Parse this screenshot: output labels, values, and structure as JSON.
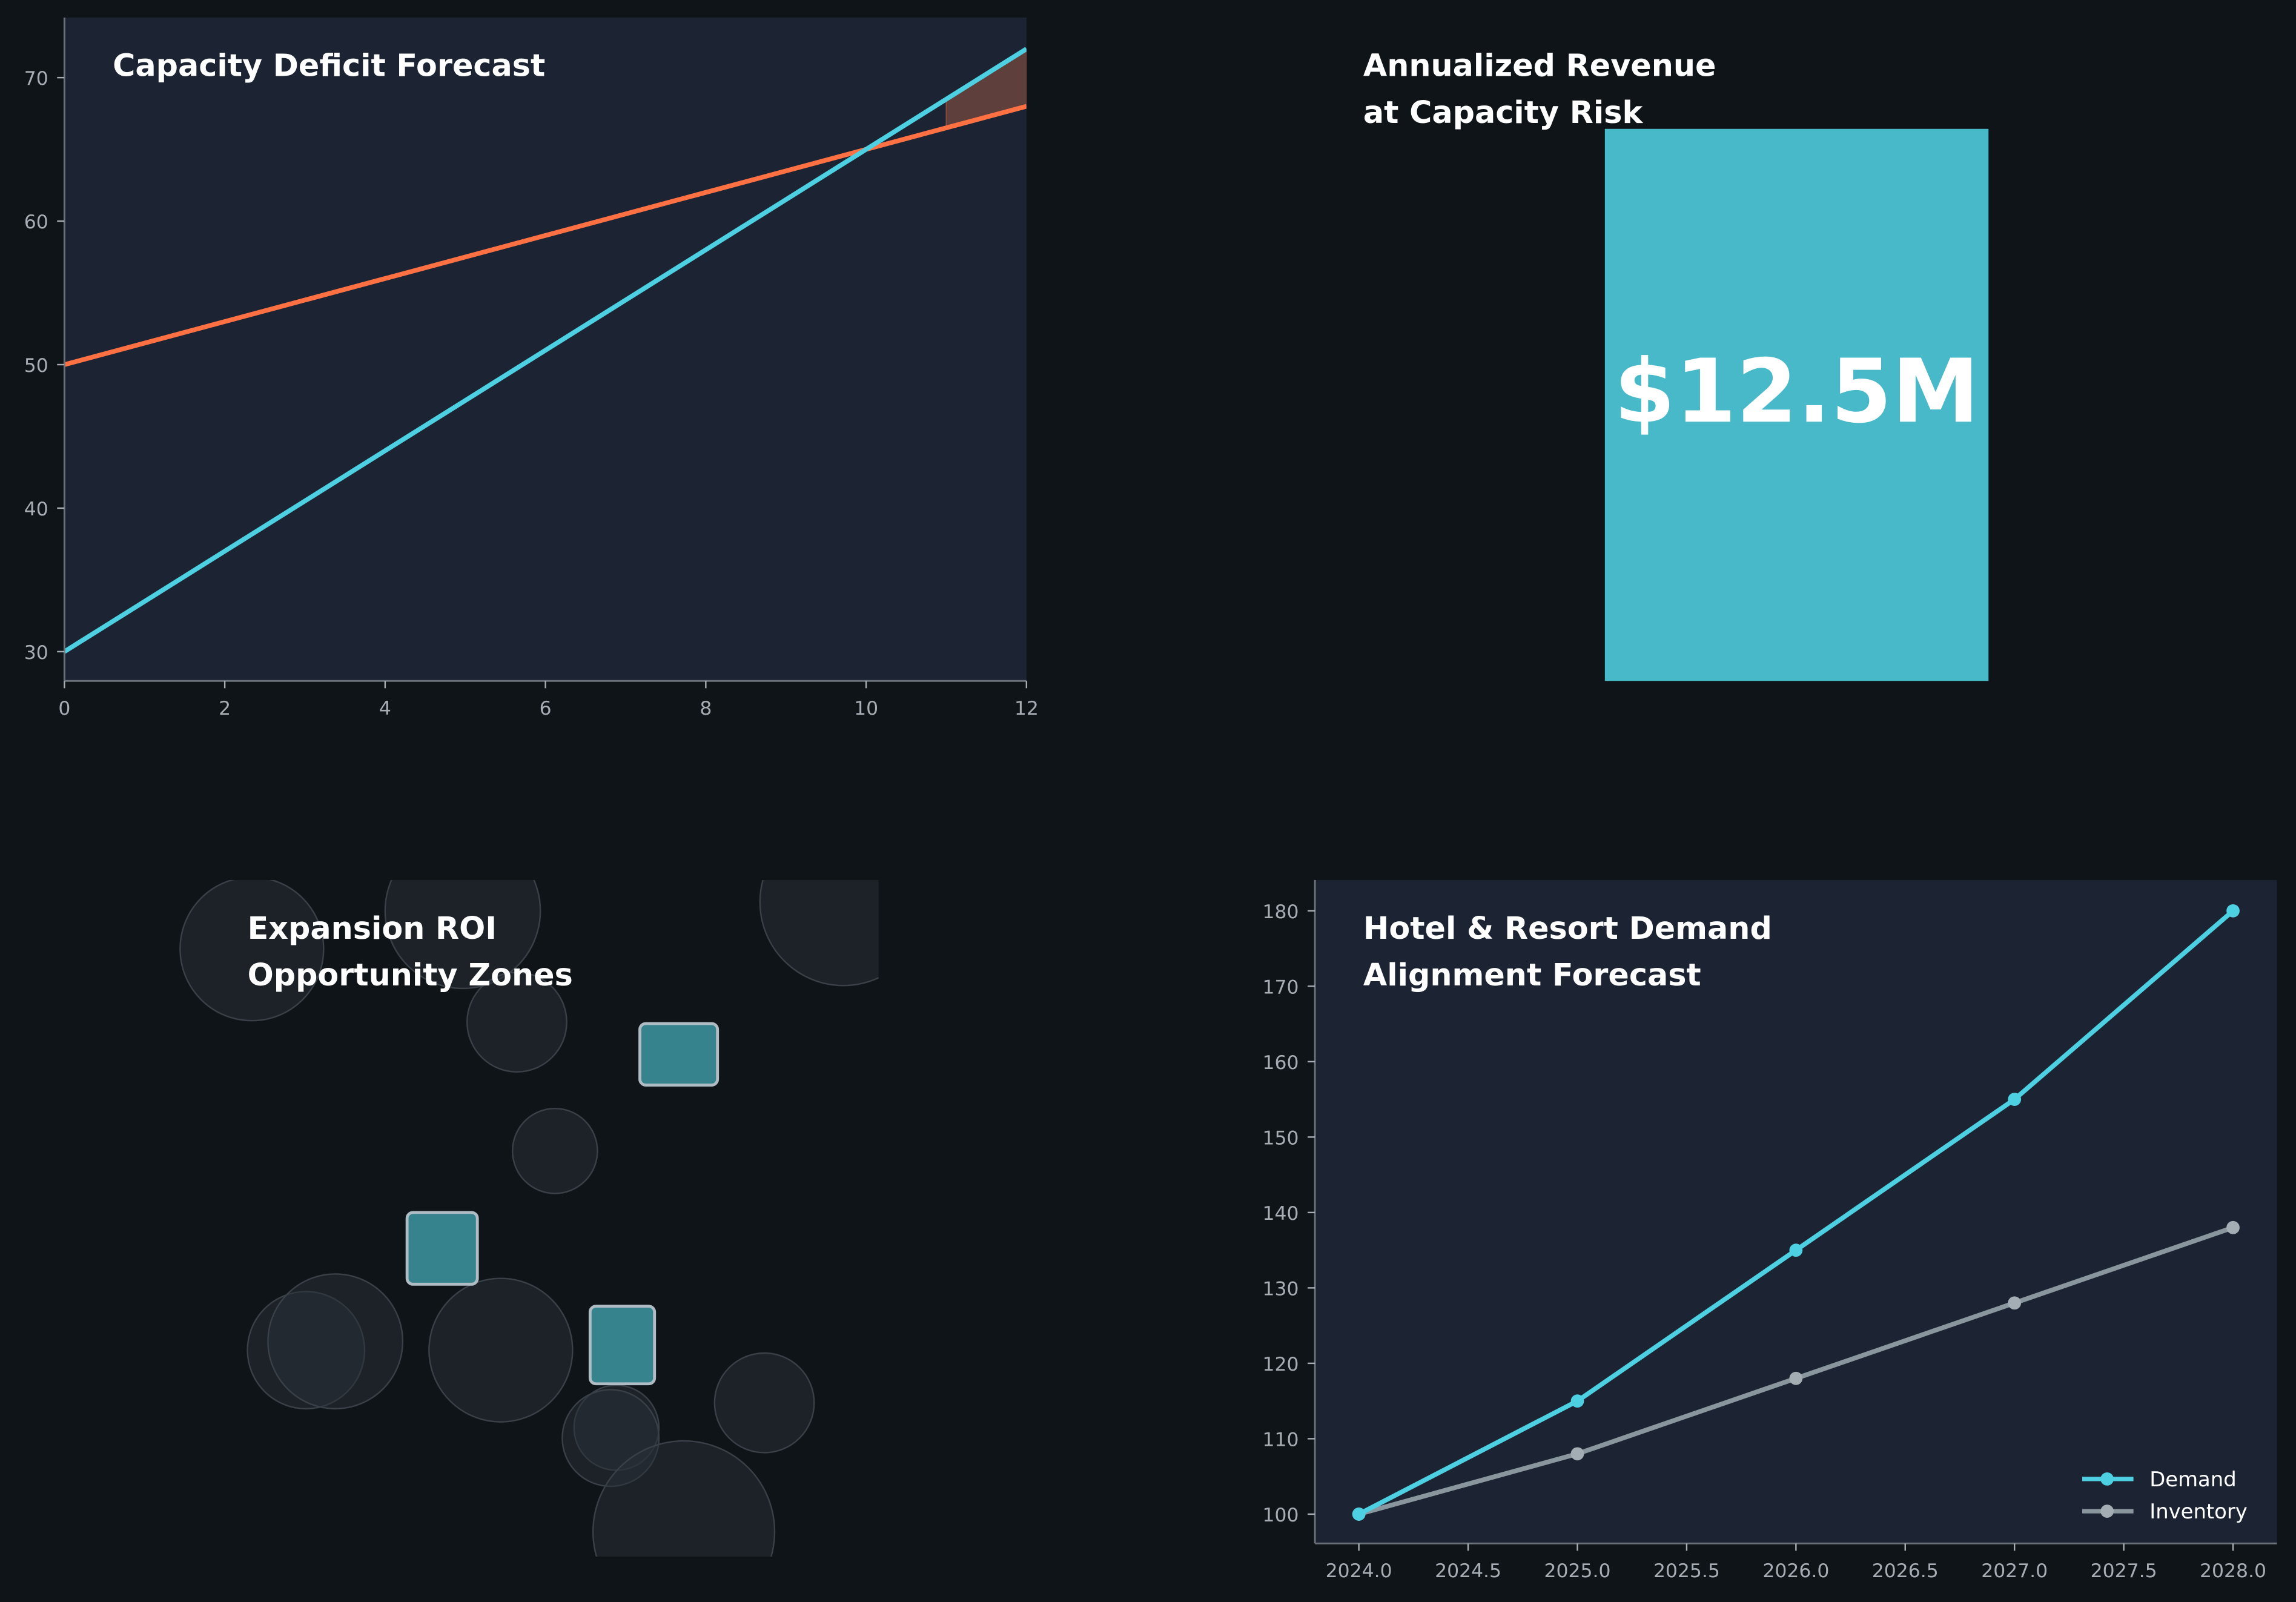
{
  "colors": {
    "background": "#0f1418",
    "panel": "#1c2433",
    "demand": "#4dd0e1",
    "capacity": "#ff7043",
    "inventory": "#8a969e",
    "deficit_fill": "#5e3f3b",
    "kpi": "#48b9c9",
    "zone": "#36838e"
  },
  "chart_data": [
    {
      "type": "line",
      "title": "Capacity Deficit Forecast",
      "xlim": [
        0,
        12
      ],
      "ylim": [
        28,
        74
      ],
      "xticks": [
        "0",
        "2",
        "4",
        "6",
        "8",
        "10",
        "12"
      ],
      "yticks": [
        "30",
        "40",
        "50",
        "60",
        "70"
      ],
      "series": [
        {
          "key": "demand",
          "x": [
            0,
            12
          ],
          "y": [
            30,
            72
          ]
        },
        {
          "key": "capacity",
          "x": [
            0,
            12
          ],
          "y": [
            50,
            68
          ]
        }
      ],
      "shaded_region": {
        "x": [
          11,
          12
        ],
        "between": [
          "demand",
          "capacity"
        ]
      },
      "grid": false
    },
    {
      "type": "table",
      "title_lines": [
        "Annualized Revenue",
        "at Capacity Risk"
      ],
      "value": "$12.5M"
    },
    {
      "type": "scatter",
      "title_lines": [
        "Expansion ROI",
        "Opportunity Zones"
      ],
      "axes_visible": false,
      "markers": {
        "circles": 12,
        "highlighted_squares": 3
      }
    },
    {
      "type": "line",
      "title_lines": [
        "Hotel & Resort Demand",
        "Alignment Forecast"
      ],
      "xlim": [
        2023.8,
        2028.2
      ],
      "ylim": [
        96,
        184
      ],
      "xticks": [
        "2024.0",
        "2024.5",
        "2025.0",
        "2025.5",
        "2026.0",
        "2026.5",
        "2027.0",
        "2027.5",
        "2028.0"
      ],
      "yticks": [
        "100",
        "110",
        "120",
        "130",
        "140",
        "150",
        "160",
        "170",
        "180"
      ],
      "x": [
        2024,
        2025,
        2026,
        2027,
        2028
      ],
      "series": [
        {
          "name": "Demand",
          "values": [
            100,
            115,
            135,
            155,
            180
          ]
        },
        {
          "name": "Inventory",
          "values": [
            100,
            108,
            118,
            128,
            138
          ]
        }
      ],
      "legend": "lower-right",
      "grid": false
    }
  ]
}
